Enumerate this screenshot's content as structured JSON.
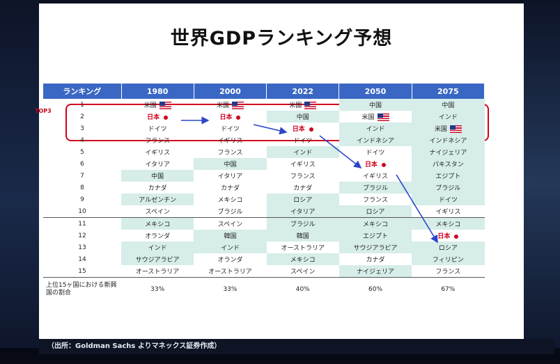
{
  "slide": {
    "title": "世界GDPランキング予想",
    "source": "（出所：Goldman Sachs よりマネックス証券作成）",
    "top3_label": "TOP3"
  },
  "table": {
    "header": [
      "ランキング",
      "1980",
      "2000",
      "2022",
      "2050",
      "2075"
    ],
    "rows": [
      {
        "rank": "1",
        "cells": [
          "米国",
          "米国",
          "米国",
          "中国",
          "中国"
        ]
      },
      {
        "rank": "2",
        "cells": [
          "日本",
          "日本",
          "中国",
          "米国",
          "インド"
        ]
      },
      {
        "rank": "3",
        "cells": [
          "ドイツ",
          "ドイツ",
          "日本",
          "インド",
          "米国"
        ]
      },
      {
        "rank": "4",
        "cells": [
          "フランス",
          "イギリス",
          "ドイツ",
          "インドネシア",
          "インドネシア"
        ]
      },
      {
        "rank": "5",
        "cells": [
          "イギリス",
          "フランス",
          "インド",
          "ドイツ",
          "ナイジェリア"
        ]
      },
      {
        "rank": "6",
        "cells": [
          "イタリア",
          "中国",
          "イギリス",
          "日本",
          "パキスタン"
        ]
      },
      {
        "rank": "7",
        "cells": [
          "中国",
          "イタリア",
          "フランス",
          "イギリス",
          "エジプト"
        ]
      },
      {
        "rank": "8",
        "cells": [
          "カナダ",
          "カナダ",
          "カナダ",
          "ブラジル",
          "ブラジル"
        ]
      },
      {
        "rank": "9",
        "cells": [
          "アルゼンチン",
          "メキシコ",
          "ロシア",
          "フランス",
          "ドイツ"
        ]
      },
      {
        "rank": "10",
        "cells": [
          "スペイン",
          "ブラジル",
          "イタリア",
          "ロシア",
          "イギリス"
        ]
      },
      {
        "rank": "11",
        "cells": [
          "メキシコ",
          "スペイン",
          "ブラジル",
          "メキシコ",
          "メキシコ"
        ]
      },
      {
        "rank": "12",
        "cells": [
          "オランダ",
          "韓国",
          "韓国",
          "エジプト",
          "日本"
        ]
      },
      {
        "rank": "13",
        "cells": [
          "インド",
          "インド",
          "オーストラリア",
          "サウジアラビア",
          "ロシア"
        ]
      },
      {
        "rank": "14",
        "cells": [
          "サウジアラビア",
          "オランダ",
          "メキシコ",
          "カナダ",
          "フィリピン"
        ]
      },
      {
        "rank": "15",
        "cells": [
          "オーストラリア",
          "オーストラリア",
          "スペイン",
          "ナイジェリア",
          "フランス"
        ]
      }
    ],
    "share_label": "上位15ヶ国における新興国の割合",
    "share_values": [
      "33%",
      "33%",
      "40%",
      "60%",
      "67%"
    ]
  },
  "colors": {
    "header_bg": "#3a67c4",
    "highlight_bg": "#d6ede9",
    "japan_red": "#d0001c",
    "arrow_blue": "#2b46c8"
  },
  "icons": {
    "us_flag": "us-flag-icon",
    "japan_marker": "japan-dot-icon"
  }
}
